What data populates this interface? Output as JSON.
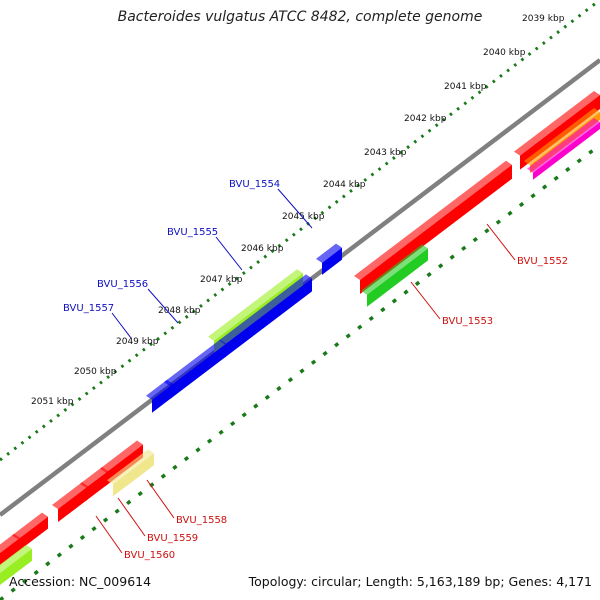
{
  "title": "Bacteroides vulgatus ATCC 8482, complete genome",
  "footer": {
    "accession": "Accession: NC_009614",
    "topology": "Topology: circular; Length: 5,163,189 bp; Genes: 4,171"
  },
  "colors": {
    "backbone": "#808080",
    "tick_dots": "#1a7a1a",
    "tick_dashes": "#1a7a1a",
    "forward_label": "#1010c0",
    "reverse_label": "#d01010",
    "red": "#ff0000",
    "blue": "#0000ee",
    "yellowgreen": "#99ee22",
    "green": "#22cc22",
    "khaki": "#f0e68c",
    "orange": "#ff9900",
    "magenta": "#ff00cc"
  },
  "ticks": [
    "2039 kbp",
    "2040 kbp",
    "2041 kbp",
    "2042 kbp",
    "2043 kbp",
    "2044 kbp",
    "2045 kbp",
    "2046 kbp",
    "2047 kbp",
    "2048 kbp",
    "2049 kbp",
    "2050 kbp",
    "2051 kbp"
  ],
  "forward_genes": [
    "BVU_1554",
    "BVU_1555",
    "BVU_1556",
    "BVU_1557"
  ],
  "reverse_genes": [
    "BVU_1552",
    "BVU_1553",
    "BVU_1558",
    "BVU_1559",
    "BVU_1560"
  ]
}
